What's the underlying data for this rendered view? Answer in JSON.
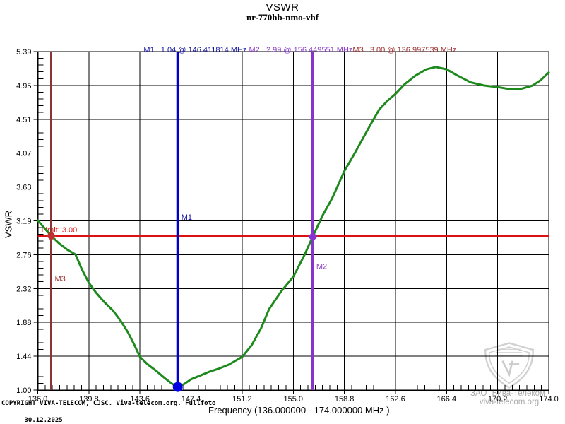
{
  "header": {
    "title": "VSWR",
    "subtitle": "nr-770hb-nmo-vhf"
  },
  "markers_legend": [
    {
      "id": "M1",
      "full": "M1   1.04 @ 146.411814 MHz ",
      "color": "#1414A0"
    },
    {
      "id": "M2",
      "full": "M2   2.99 @ 156.449551 MHz",
      "color": "#8A3FC6"
    },
    {
      "id": "M3",
      "full": "M3   3.00 @ 136.997539 MHz",
      "color": "#A03434"
    }
  ],
  "axes": {
    "y_title": "VSWR",
    "x_title": "Frequency (136.000000 - 174.000000 MHz )"
  },
  "footer": {
    "copyright": "COPYRIGHT VIVA-TELECOM, CJSC. Viva-telecom.org. Fullfoto",
    "date": "30.12.2025"
  },
  "watermark": {
    "line1": "ЗАО \"Вива-Телеком\"",
    "line2": "viva-telecom.org"
  },
  "chart_data": {
    "type": "line",
    "title": "VSWR",
    "subtitle": "nr-770hb-nmo-vhf",
    "xlabel": "Frequency (136.000000 - 174.000000 MHz )",
    "ylabel": "VSWR",
    "xlim": [
      136.0,
      174.0
    ],
    "ylim": [
      1.0,
      5.39
    ],
    "grid": true,
    "x_ticks": {
      "labels": [
        "136.0",
        "139.8",
        "143.6",
        "147.4",
        "151.2",
        "155.0",
        "158.8",
        "162.6",
        "166.4",
        "170.2",
        "174.0"
      ]
    },
    "y_ticks": {
      "labels": [
        "1.00",
        "1.44",
        "1.88",
        "2.32",
        "2.76",
        "3.19",
        "3.63",
        "4.07",
        "4.51",
        "4.95",
        "5.39"
      ]
    },
    "minor_divisions": {
      "x": 7,
      "y": 5
    },
    "limit": {
      "label": "Limit: 3.00",
      "value": 3.0,
      "color": "#DD1111"
    },
    "markers": [
      {
        "id": "M1",
        "freq": 146.411814,
        "vswr": 1.04,
        "line_color": "#0000CC",
        "symbol": "circle",
        "symbol_color": "#0000E0",
        "label_color": "#1414A0",
        "label_vswr": 3.21
      },
      {
        "id": "M2",
        "freq": 156.449551,
        "vswr": 2.99,
        "line_color": "#8833CC",
        "symbol": "diamond",
        "symbol_color": "#8833CC",
        "label_color": "#8A3FC6",
        "label_vswr": 2.57
      },
      {
        "id": "M3",
        "freq": 136.997539,
        "vswr": 3.0,
        "line_color": "#8B3434",
        "symbol": "diamond",
        "symbol_color": "#C03030",
        "label_color": "#A03434",
        "label_vswr": 2.41
      }
    ],
    "series": [
      {
        "name": "VSWR",
        "color": "#1E8A1E",
        "points": [
          [
            136.0,
            3.2
          ],
          [
            136.5,
            3.1
          ],
          [
            137.0,
            3.0
          ],
          [
            137.6,
            2.9
          ],
          [
            138.2,
            2.82
          ],
          [
            138.8,
            2.76
          ],
          [
            139.3,
            2.56
          ],
          [
            139.8,
            2.39
          ],
          [
            140.3,
            2.27
          ],
          [
            140.9,
            2.15
          ],
          [
            141.6,
            2.03
          ],
          [
            142.2,
            1.89
          ],
          [
            142.7,
            1.75
          ],
          [
            143.2,
            1.58
          ],
          [
            143.6,
            1.43
          ],
          [
            144.2,
            1.33
          ],
          [
            144.8,
            1.25
          ],
          [
            145.4,
            1.16
          ],
          [
            146.0,
            1.08
          ],
          [
            146.411814,
            1.04
          ],
          [
            146.9,
            1.08
          ],
          [
            147.4,
            1.14
          ],
          [
            148.1,
            1.19
          ],
          [
            148.8,
            1.24
          ],
          [
            149.5,
            1.28
          ],
          [
            150.2,
            1.33
          ],
          [
            150.7,
            1.38
          ],
          [
            151.2,
            1.43
          ],
          [
            151.9,
            1.58
          ],
          [
            152.6,
            1.8
          ],
          [
            153.2,
            2.05
          ],
          [
            154.1,
            2.28
          ],
          [
            155.0,
            2.47
          ],
          [
            155.8,
            2.74
          ],
          [
            156.449551,
            2.99
          ],
          [
            157.2,
            3.27
          ],
          [
            157.9,
            3.49
          ],
          [
            158.8,
            3.84
          ],
          [
            159.5,
            4.05
          ],
          [
            160.1,
            4.24
          ],
          [
            160.8,
            4.46
          ],
          [
            161.4,
            4.64
          ],
          [
            162.0,
            4.75
          ],
          [
            162.6,
            4.84
          ],
          [
            163.3,
            4.97
          ],
          [
            164.1,
            5.08
          ],
          [
            164.9,
            5.16
          ],
          [
            165.6,
            5.19
          ],
          [
            166.4,
            5.16
          ],
          [
            167.2,
            5.08
          ],
          [
            168.2,
            4.99
          ],
          [
            169.2,
            4.95
          ],
          [
            170.2,
            4.93
          ],
          [
            171.2,
            4.9
          ],
          [
            172.0,
            4.91
          ],
          [
            172.8,
            4.95
          ],
          [
            173.4,
            5.02
          ],
          [
            174.0,
            5.12
          ]
        ]
      }
    ]
  }
}
